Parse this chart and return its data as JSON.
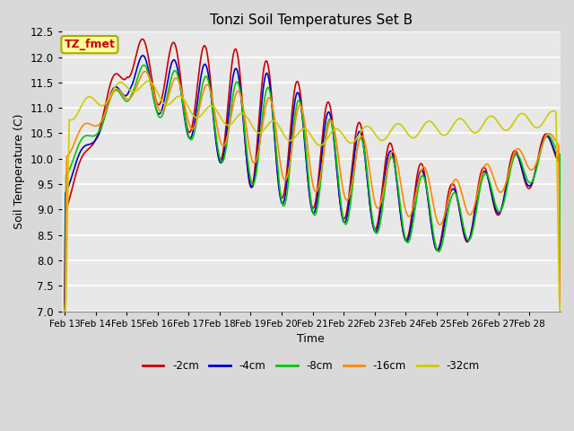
{
  "title": "Tonzi Soil Temperatures Set B",
  "xlabel": "Time",
  "ylabel": "Soil Temperature (C)",
  "ylim": [
    7.0,
    12.5
  ],
  "series_colors": {
    "-2cm": "#cc0000",
    "-4cm": "#0000cc",
    "-8cm": "#00cc00",
    "-16cm": "#ff8800",
    "-32cm": "#cccc00"
  },
  "series_order": [
    "-2cm",
    "-4cm",
    "-8cm",
    "-16cm",
    "-32cm"
  ],
  "xtick_labels": [
    "Feb 13",
    "Feb 14",
    "Feb 15",
    "Feb 16",
    "Feb 17",
    "Feb 18",
    "Feb 19",
    "Feb 20",
    "Feb 21",
    "Feb 22",
    "Feb 23",
    "Feb 24",
    "Feb 25",
    "Feb 26",
    "Feb 27",
    "Feb 28"
  ],
  "background_color": "#d9d9d9",
  "plot_bg_color": "#e8e8e8",
  "annotation_text": "TZ_fmet",
  "annotation_bg": "#ffff99",
  "annotation_fg": "#cc0000",
  "legend_pos": "lower center"
}
